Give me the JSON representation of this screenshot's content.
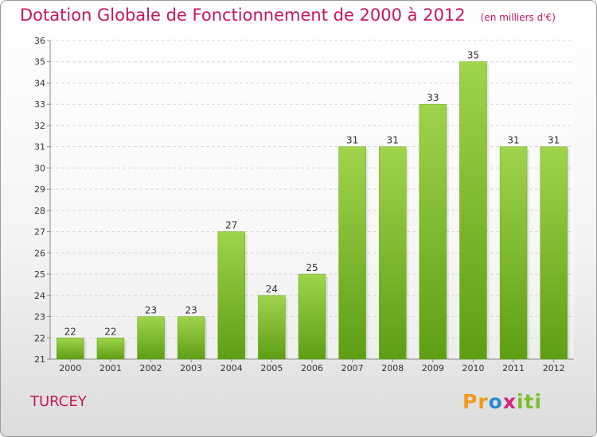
{
  "header": {
    "title": "Dotation Globale de Fonctionnement de 2000 à 2012",
    "subtitle": "(en milliers d'€)"
  },
  "place": "TURCEY",
  "logo": {
    "text": "Proxiti"
  },
  "colors": {
    "title": "#c8155c",
    "bar_top": "#9fd44c",
    "bar_bottom": "#5e9e14",
    "grid": "#d6d6d6",
    "axis_text": "#333333"
  },
  "chart_data": {
    "type": "bar",
    "categories": [
      "2000",
      "2001",
      "2002",
      "2003",
      "2004",
      "2005",
      "2006",
      "2007",
      "2008",
      "2009",
      "2010",
      "2011",
      "2012"
    ],
    "values": [
      22,
      22,
      23,
      23,
      27,
      24,
      25,
      31,
      31,
      33,
      35,
      31,
      31
    ],
    "title": "Dotation Globale de Fonctionnement de 2000 à 2012",
    "subtitle": "(en milliers d'€)",
    "xlabel": "",
    "ylabel": "",
    "ylim": [
      21,
      36
    ],
    "yticks": [
      21,
      22,
      23,
      24,
      25,
      26,
      27,
      28,
      29,
      30,
      31,
      32,
      33,
      34,
      35,
      36
    ],
    "grid": true,
    "data_labels": true
  }
}
